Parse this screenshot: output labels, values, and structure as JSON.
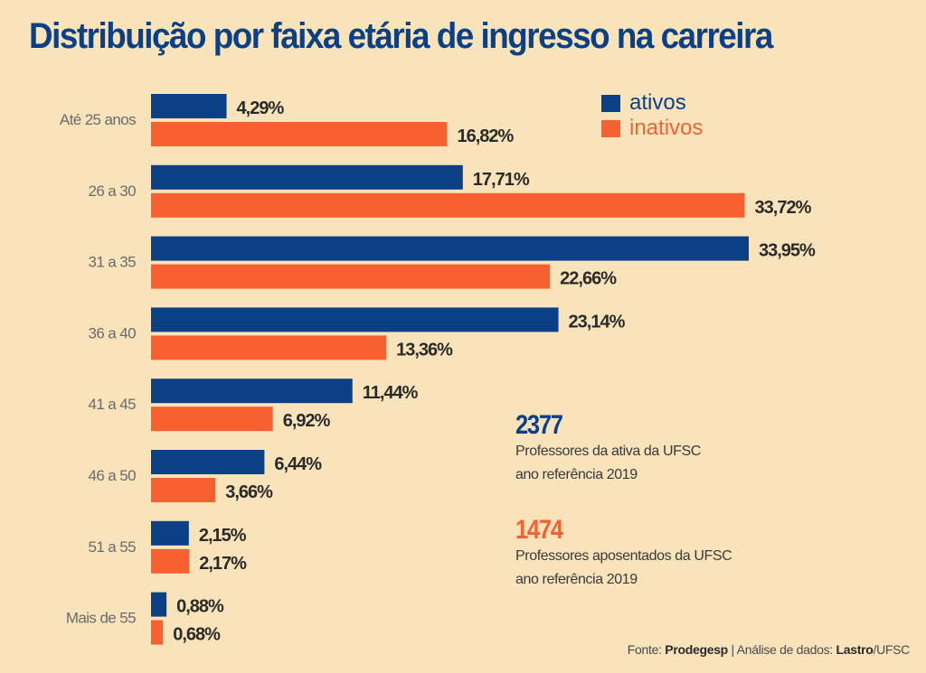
{
  "colors": {
    "background": "#f8e3bb",
    "ativos": "#0b3f86",
    "inativos": "#f76132",
    "title": "#0b3f86"
  },
  "chart_data": {
    "type": "bar",
    "orientation": "horizontal",
    "title": "Distribuição por faixa etária de ingresso na carreira",
    "xlabel": "",
    "ylabel": "",
    "unit": "%",
    "categories": [
      "Até 25 anos",
      "26 a 30",
      "31 a 35",
      "36 a 40",
      "41 a 45",
      "46 a 50",
      "51 a 55",
      "Mais de 55"
    ],
    "series": [
      {
        "name": "ativos",
        "color": "#0b3f86",
        "values": [
          4.29,
          17.71,
          33.95,
          23.14,
          11.44,
          6.44,
          2.15,
          0.88
        ],
        "labels": [
          "4,29%",
          "17,71%",
          "33,95%",
          "23,14%",
          "11,44%",
          "6,44%",
          "2,15%",
          "0,88%"
        ]
      },
      {
        "name": "inativos",
        "color": "#f76132",
        "values": [
          16.82,
          33.72,
          22.66,
          13.36,
          6.92,
          3.66,
          2.17,
          0.68
        ],
        "labels": [
          "16,82%",
          "33,72%",
          "22,66%",
          "13,36%",
          "6,92%",
          "3,66%",
          "2,17%",
          "0,68%"
        ]
      }
    ],
    "xlim": [
      0,
      34
    ],
    "grid": false,
    "legend_position": "top-right"
  },
  "legend": {
    "items": [
      {
        "label": "ativos",
        "color": "#0b3f86"
      },
      {
        "label": "inativos",
        "color": "#f76132"
      }
    ]
  },
  "stats": [
    {
      "number": "2377",
      "color": "#0b3f86",
      "line1": "Professores da ativa da UFSC",
      "line2": "ano referência 2019"
    },
    {
      "number": "1474",
      "color": "#f76132",
      "line1": "Professores aposentados da UFSC",
      "line2": "ano referência 2019"
    }
  ],
  "source": {
    "prefix": "Fonte: ",
    "source_name": "Prodegesp",
    "separator": " | Análise de dados: ",
    "analysis_name": "Lastro",
    "suffix": "/UFSC"
  }
}
